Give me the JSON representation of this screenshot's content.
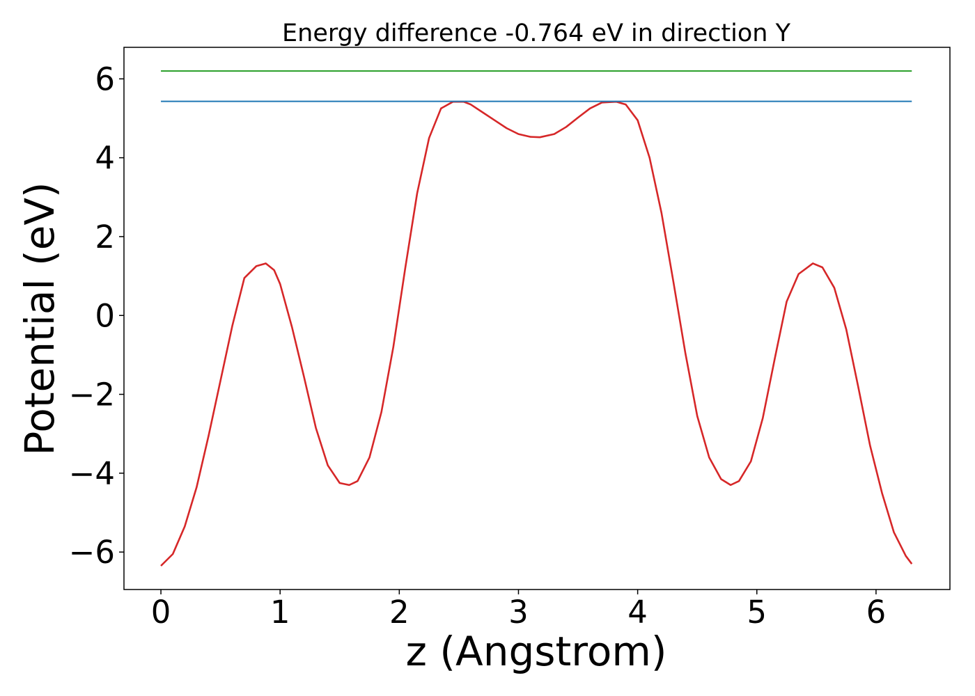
{
  "chart_data": {
    "type": "line",
    "title": "Energy difference -0.764 eV in direction Y",
    "xlabel": "z (Angstrom)",
    "ylabel": "Potential (eV)",
    "xlim": [
      -0.31,
      6.62
    ],
    "ylim": [
      -6.95,
      6.8
    ],
    "x_ticks": [
      0,
      1,
      2,
      3,
      4,
      5,
      6
    ],
    "x_tick_labels": [
      "0",
      "1",
      "2",
      "3",
      "4",
      "5",
      "6"
    ],
    "y_ticks": [
      -6,
      -4,
      -2,
      0,
      2,
      4,
      6
    ],
    "y_tick_labels": [
      "−6",
      "−4",
      "−2",
      "0",
      "2",
      "4",
      "6"
    ],
    "grid": false,
    "series": [
      {
        "color": "#d62728",
        "x": [
          0.0,
          0.1,
          0.2,
          0.3,
          0.4,
          0.5,
          0.6,
          0.7,
          0.8,
          0.88,
          0.95,
          1.0,
          1.1,
          1.2,
          1.3,
          1.4,
          1.5,
          1.58,
          1.65,
          1.75,
          1.85,
          1.95,
          2.05,
          2.15,
          2.25,
          2.35,
          2.45,
          2.54,
          2.6,
          2.7,
          2.8,
          2.9,
          3.0,
          3.1,
          3.18,
          3.3,
          3.4,
          3.5,
          3.6,
          3.7,
          3.82,
          3.9,
          4.0,
          4.1,
          4.2,
          4.3,
          4.4,
          4.5,
          4.6,
          4.7,
          4.78,
          4.85,
          4.95,
          5.05,
          5.15,
          5.25,
          5.35,
          5.47,
          5.55,
          5.65,
          5.75,
          5.85,
          5.95,
          6.05,
          6.15,
          6.25,
          6.3
        ],
        "y": [
          -6.35,
          -6.05,
          -5.35,
          -4.35,
          -3.05,
          -1.65,
          -0.25,
          0.95,
          1.25,
          1.32,
          1.15,
          0.8,
          -0.3,
          -1.55,
          -2.85,
          -3.8,
          -4.25,
          -4.3,
          -4.2,
          -3.6,
          -2.45,
          -0.8,
          1.2,
          3.1,
          4.5,
          5.25,
          5.42,
          5.42,
          5.35,
          5.15,
          4.95,
          4.75,
          4.6,
          4.53,
          4.52,
          4.6,
          4.78,
          5.02,
          5.25,
          5.4,
          5.42,
          5.35,
          4.95,
          4.0,
          2.6,
          0.85,
          -0.95,
          -2.55,
          -3.6,
          -4.15,
          -4.3,
          -4.2,
          -3.7,
          -2.6,
          -1.1,
          0.35,
          1.05,
          1.32,
          1.22,
          0.7,
          -0.35,
          -1.8,
          -3.3,
          -4.5,
          -5.5,
          -6.1,
          -6.3
        ]
      },
      {
        "color": "#1f77b4",
        "x": [
          0.0,
          6.3
        ],
        "y": [
          5.43,
          5.43
        ]
      },
      {
        "color": "#2ca02c",
        "x": [
          0.0,
          6.3
        ],
        "y": [
          6.2,
          6.2
        ]
      }
    ]
  }
}
